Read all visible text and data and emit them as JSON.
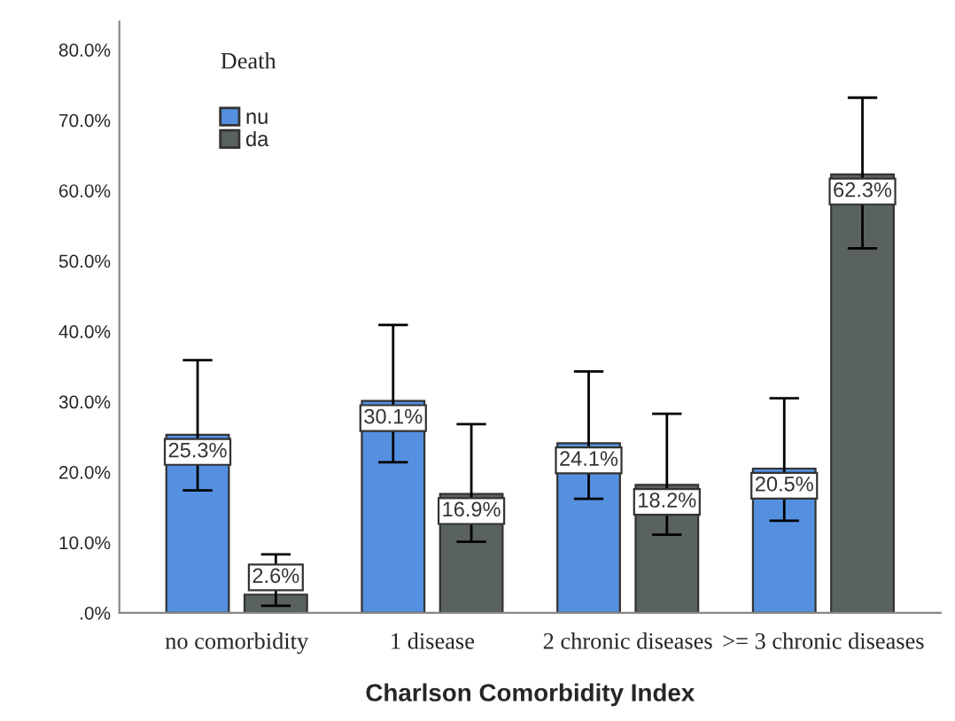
{
  "chart_data": {
    "type": "bar",
    "xlabel": "Charlson Comorbidity Index",
    "legend_title": "Death",
    "categories": [
      "no comorbidity",
      "1 disease",
      "2 chronic diseases",
      ">= 3 chronic diseases"
    ],
    "series": [
      {
        "name": "nu",
        "color": "#5590e0",
        "values": [
          25.3,
          30.1,
          24.1,
          20.5
        ],
        "errors": [
          [
            17.4,
            35.9
          ],
          [
            21.4,
            40.9
          ],
          [
            16.2,
            34.3
          ],
          [
            13.1,
            30.5
          ]
        ],
        "value_labels": [
          "25.3%",
          "30.1%",
          "24.1%",
          "20.5%"
        ]
      },
      {
        "name": "da",
        "color": "#5a625d",
        "values": [
          2.6,
          16.9,
          18.2,
          62.3
        ],
        "errors": [
          [
            1.0,
            8.3
          ],
          [
            10.1,
            26.8
          ],
          [
            11.1,
            28.3
          ],
          [
            51.8,
            73.2
          ]
        ],
        "value_labels": [
          "2.6%",
          "16.9%",
          "18.2%",
          "62.3%"
        ]
      }
    ],
    "ylim": [
      0,
      84
    ],
    "yticks": [
      {
        "value": 0,
        "label": ".0%"
      },
      {
        "value": 10,
        "label": "10.0%"
      },
      {
        "value": 20,
        "label": "20.0%"
      },
      {
        "value": 30,
        "label": "30.0%"
      },
      {
        "value": 40,
        "label": "40.0%"
      },
      {
        "value": 50,
        "label": "50.0%"
      },
      {
        "value": 60,
        "label": "60.0%"
      },
      {
        "value": 70,
        "label": "70.0%"
      },
      {
        "value": 80,
        "label": "80.0%"
      }
    ],
    "grid": false,
    "legend": "top left"
  }
}
